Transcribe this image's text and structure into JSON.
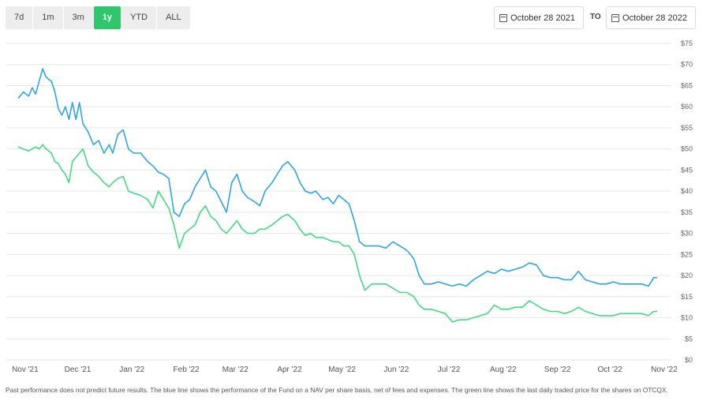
{
  "range_buttons": [
    {
      "label": "7d",
      "active": false
    },
    {
      "label": "1m",
      "active": false
    },
    {
      "label": "3m",
      "active": false
    },
    {
      "label": "1y",
      "active": true
    },
    {
      "label": "YTD",
      "active": false
    },
    {
      "label": "ALL",
      "active": false
    }
  ],
  "date_range": {
    "from": "October 28 2021",
    "to_label": "TO",
    "to": "October 28 2022"
  },
  "colors": {
    "nav_line": "#2aa6e8",
    "price_line": "#43d982",
    "active_button": "#2ec76c",
    "grid": "#e6e6e6"
  },
  "footnote": "Past performance does not predict future results. The blue line shows the performance of the Fund on a NAV per share basis, net of fees and expenses. The green line shows the last daily traded price for the shares on OTCQX.",
  "chart_data": {
    "type": "line",
    "ylim": [
      0,
      75
    ],
    "ytick_values": [
      0,
      5,
      10,
      15,
      20,
      25,
      30,
      35,
      40,
      45,
      50,
      55,
      60,
      65,
      70,
      75
    ],
    "ytick_labels": [
      "$0",
      "$5",
      "$10",
      "$15",
      "$20",
      "$25",
      "$30",
      "$35",
      "$40",
      "$45",
      "$50",
      "$55",
      "$60",
      "$65",
      "$70",
      "$75"
    ],
    "xlim": [
      "2021-10-28",
      "2022-11-01"
    ],
    "xticks": [
      {
        "date": "2021-11-01",
        "label": "Nov '21"
      },
      {
        "date": "2021-12-01",
        "label": "Dec '21"
      },
      {
        "date": "2022-01-01",
        "label": "Jan '22"
      },
      {
        "date": "2022-02-01",
        "label": "Feb '22"
      },
      {
        "date": "2022-03-01",
        "label": "Mar '22"
      },
      {
        "date": "2022-04-01",
        "label": "Apr '22"
      },
      {
        "date": "2022-05-01",
        "label": "May '22"
      },
      {
        "date": "2022-06-01",
        "label": "Jun '22"
      },
      {
        "date": "2022-07-01",
        "label": "Jul '22"
      },
      {
        "date": "2022-08-01",
        "label": "Aug '22"
      },
      {
        "date": "2022-09-01",
        "label": "Sep '22"
      },
      {
        "date": "2022-10-01",
        "label": "Oct '22"
      },
      {
        "date": "2022-11-01",
        "label": "Nov '22"
      }
    ],
    "series": [
      {
        "color": "#2aa6e8",
        "points": [
          [
            "2021-10-28",
            62
          ],
          [
            "2021-10-31",
            63.5
          ],
          [
            "2021-11-03",
            62.5
          ],
          [
            "2021-11-05",
            64.5
          ],
          [
            "2021-11-07",
            63
          ],
          [
            "2021-11-09",
            66
          ],
          [
            "2021-11-11",
            69
          ],
          [
            "2021-11-13",
            67
          ],
          [
            "2021-11-16",
            66
          ],
          [
            "2021-11-18",
            63.5
          ],
          [
            "2021-11-20",
            59.5
          ],
          [
            "2021-11-22",
            58
          ],
          [
            "2021-11-24",
            60
          ],
          [
            "2021-11-26",
            57
          ],
          [
            "2021-11-28",
            61
          ],
          [
            "2021-11-30",
            57
          ],
          [
            "2021-12-02",
            61
          ],
          [
            "2021-12-04",
            56
          ],
          [
            "2021-12-07",
            54
          ],
          [
            "2021-12-10",
            51
          ],
          [
            "2021-12-13",
            52
          ],
          [
            "2021-12-16",
            49
          ],
          [
            "2021-12-19",
            51
          ],
          [
            "2021-12-21",
            49
          ],
          [
            "2021-12-24",
            53.5
          ],
          [
            "2021-12-27",
            54.5
          ],
          [
            "2021-12-30",
            50
          ],
          [
            "2022-01-02",
            49
          ],
          [
            "2022-01-06",
            49
          ],
          [
            "2022-01-10",
            47
          ],
          [
            "2022-01-13",
            46
          ],
          [
            "2022-01-16",
            44.5
          ],
          [
            "2022-01-19",
            44
          ],
          [
            "2022-01-22",
            43
          ],
          [
            "2022-01-25",
            35
          ],
          [
            "2022-01-28",
            34
          ],
          [
            "2022-01-31",
            37
          ],
          [
            "2022-02-03",
            38
          ],
          [
            "2022-02-06",
            41
          ],
          [
            "2022-02-09",
            43
          ],
          [
            "2022-02-12",
            45
          ],
          [
            "2022-02-15",
            41
          ],
          [
            "2022-02-18",
            40
          ],
          [
            "2022-02-21",
            37.5
          ],
          [
            "2022-02-24",
            35
          ],
          [
            "2022-02-27",
            42
          ],
          [
            "2022-03-02",
            44
          ],
          [
            "2022-03-05",
            40
          ],
          [
            "2022-03-08",
            38.5
          ],
          [
            "2022-03-12",
            37.5
          ],
          [
            "2022-03-15",
            36.5
          ],
          [
            "2022-03-18",
            40
          ],
          [
            "2022-03-22",
            42
          ],
          [
            "2022-03-25",
            44
          ],
          [
            "2022-03-28",
            46
          ],
          [
            "2022-03-31",
            47
          ],
          [
            "2022-04-04",
            45
          ],
          [
            "2022-04-07",
            42
          ],
          [
            "2022-04-10",
            40
          ],
          [
            "2022-04-13",
            39.5
          ],
          [
            "2022-04-16",
            40
          ],
          [
            "2022-04-20",
            38
          ],
          [
            "2022-04-23",
            38.5
          ],
          [
            "2022-04-26",
            37
          ],
          [
            "2022-04-29",
            39
          ],
          [
            "2022-05-02",
            38
          ],
          [
            "2022-05-05",
            37
          ],
          [
            "2022-05-08",
            33
          ],
          [
            "2022-05-11",
            28
          ],
          [
            "2022-05-14",
            27
          ],
          [
            "2022-05-18",
            27
          ],
          [
            "2022-05-22",
            27
          ],
          [
            "2022-05-26",
            26.5
          ],
          [
            "2022-05-30",
            28
          ],
          [
            "2022-06-03",
            27
          ],
          [
            "2022-06-07",
            26
          ],
          [
            "2022-06-11",
            24
          ],
          [
            "2022-06-14",
            20
          ],
          [
            "2022-06-17",
            18
          ],
          [
            "2022-06-21",
            18
          ],
          [
            "2022-06-25",
            18.5
          ],
          [
            "2022-06-29",
            18
          ],
          [
            "2022-07-03",
            17.5
          ],
          [
            "2022-07-07",
            18
          ],
          [
            "2022-07-11",
            17.5
          ],
          [
            "2022-07-15",
            19
          ],
          [
            "2022-07-19",
            20
          ],
          [
            "2022-07-23",
            21
          ],
          [
            "2022-07-27",
            20.5
          ],
          [
            "2022-07-31",
            21.5
          ],
          [
            "2022-08-04",
            21
          ],
          [
            "2022-08-08",
            21.5
          ],
          [
            "2022-08-12",
            22
          ],
          [
            "2022-08-16",
            23
          ],
          [
            "2022-08-20",
            22.5
          ],
          [
            "2022-08-24",
            20
          ],
          [
            "2022-08-28",
            19.5
          ],
          [
            "2022-09-01",
            19.5
          ],
          [
            "2022-09-05",
            19
          ],
          [
            "2022-09-09",
            19
          ],
          [
            "2022-09-13",
            21
          ],
          [
            "2022-09-17",
            19
          ],
          [
            "2022-09-21",
            18.5
          ],
          [
            "2022-09-25",
            18
          ],
          [
            "2022-09-29",
            18
          ],
          [
            "2022-10-03",
            18.5
          ],
          [
            "2022-10-07",
            18
          ],
          [
            "2022-10-11",
            18
          ],
          [
            "2022-10-15",
            18
          ],
          [
            "2022-10-19",
            18
          ],
          [
            "2022-10-23",
            17.5
          ],
          [
            "2022-10-26",
            19.5
          ],
          [
            "2022-10-28",
            19.5
          ]
        ]
      },
      {
        "color": "#43d982",
        "points": [
          [
            "2021-10-28",
            50.5
          ],
          [
            "2021-10-31",
            50
          ],
          [
            "2021-11-03",
            49.5
          ],
          [
            "2021-11-05",
            50
          ],
          [
            "2021-11-07",
            50.5
          ],
          [
            "2021-11-09",
            50
          ],
          [
            "2021-11-11",
            51
          ],
          [
            "2021-11-13",
            50
          ],
          [
            "2021-11-16",
            49
          ],
          [
            "2021-11-18",
            47
          ],
          [
            "2021-11-20",
            46.5
          ],
          [
            "2021-11-22",
            45
          ],
          [
            "2021-11-24",
            44
          ],
          [
            "2021-11-26",
            42
          ],
          [
            "2021-11-28",
            47
          ],
          [
            "2021-11-30",
            48
          ],
          [
            "2021-12-02",
            49
          ],
          [
            "2021-12-04",
            50
          ],
          [
            "2021-12-07",
            46
          ],
          [
            "2021-12-10",
            44.5
          ],
          [
            "2021-12-13",
            43.5
          ],
          [
            "2021-12-16",
            42
          ],
          [
            "2021-12-19",
            41
          ],
          [
            "2021-12-21",
            42
          ],
          [
            "2021-12-24",
            43
          ],
          [
            "2021-12-27",
            43.5
          ],
          [
            "2021-12-30",
            40
          ],
          [
            "2022-01-02",
            39.5
          ],
          [
            "2022-01-06",
            39
          ],
          [
            "2022-01-10",
            38
          ],
          [
            "2022-01-13",
            36
          ],
          [
            "2022-01-16",
            40
          ],
          [
            "2022-01-19",
            38
          ],
          [
            "2022-01-22",
            36
          ],
          [
            "2022-01-25",
            32
          ],
          [
            "2022-01-28",
            26.5
          ],
          [
            "2022-01-31",
            30
          ],
          [
            "2022-02-03",
            31
          ],
          [
            "2022-02-06",
            32
          ],
          [
            "2022-02-09",
            35
          ],
          [
            "2022-02-12",
            36.5
          ],
          [
            "2022-02-15",
            34
          ],
          [
            "2022-02-18",
            33
          ],
          [
            "2022-02-21",
            31
          ],
          [
            "2022-02-24",
            30
          ],
          [
            "2022-02-27",
            31.5
          ],
          [
            "2022-03-02",
            33
          ],
          [
            "2022-03-05",
            31
          ],
          [
            "2022-03-08",
            30
          ],
          [
            "2022-03-12",
            30
          ],
          [
            "2022-03-15",
            31
          ],
          [
            "2022-03-18",
            31
          ],
          [
            "2022-03-22",
            32
          ],
          [
            "2022-03-25",
            33
          ],
          [
            "2022-03-28",
            34
          ],
          [
            "2022-03-31",
            34.5
          ],
          [
            "2022-04-04",
            33
          ],
          [
            "2022-04-07",
            31
          ],
          [
            "2022-04-10",
            29.5
          ],
          [
            "2022-04-13",
            30
          ],
          [
            "2022-04-16",
            29
          ],
          [
            "2022-04-20",
            29
          ],
          [
            "2022-04-23",
            28.5
          ],
          [
            "2022-04-26",
            28
          ],
          [
            "2022-04-29",
            28
          ],
          [
            "2022-05-02",
            27
          ],
          [
            "2022-05-05",
            27
          ],
          [
            "2022-05-08",
            25
          ],
          [
            "2022-05-11",
            20
          ],
          [
            "2022-05-14",
            16.5
          ],
          [
            "2022-05-18",
            18
          ],
          [
            "2022-05-22",
            18
          ],
          [
            "2022-05-26",
            18
          ],
          [
            "2022-05-30",
            17
          ],
          [
            "2022-06-03",
            16
          ],
          [
            "2022-06-07",
            16
          ],
          [
            "2022-06-11",
            15
          ],
          [
            "2022-06-14",
            13
          ],
          [
            "2022-06-17",
            12
          ],
          [
            "2022-06-21",
            12
          ],
          [
            "2022-06-25",
            11.5
          ],
          [
            "2022-06-29",
            11
          ],
          [
            "2022-07-03",
            9
          ],
          [
            "2022-07-07",
            9.5
          ],
          [
            "2022-07-11",
            9.5
          ],
          [
            "2022-07-15",
            10
          ],
          [
            "2022-07-19",
            10.5
          ],
          [
            "2022-07-23",
            11
          ],
          [
            "2022-07-27",
            13
          ],
          [
            "2022-07-31",
            12
          ],
          [
            "2022-08-04",
            12
          ],
          [
            "2022-08-08",
            12.5
          ],
          [
            "2022-08-12",
            12.5
          ],
          [
            "2022-08-16",
            14
          ],
          [
            "2022-08-20",
            13
          ],
          [
            "2022-08-24",
            12
          ],
          [
            "2022-08-28",
            11.5
          ],
          [
            "2022-09-01",
            11.5
          ],
          [
            "2022-09-05",
            11
          ],
          [
            "2022-09-09",
            11.5
          ],
          [
            "2022-09-13",
            12.5
          ],
          [
            "2022-09-17",
            11.5
          ],
          [
            "2022-09-21",
            11
          ],
          [
            "2022-09-25",
            10.5
          ],
          [
            "2022-09-29",
            10.5
          ],
          [
            "2022-10-03",
            10.5
          ],
          [
            "2022-10-07",
            11
          ],
          [
            "2022-10-11",
            11
          ],
          [
            "2022-10-15",
            11
          ],
          [
            "2022-10-19",
            11
          ],
          [
            "2022-10-23",
            10.5
          ],
          [
            "2022-10-26",
            11.5
          ],
          [
            "2022-10-28",
            11.5
          ]
        ]
      }
    ]
  }
}
